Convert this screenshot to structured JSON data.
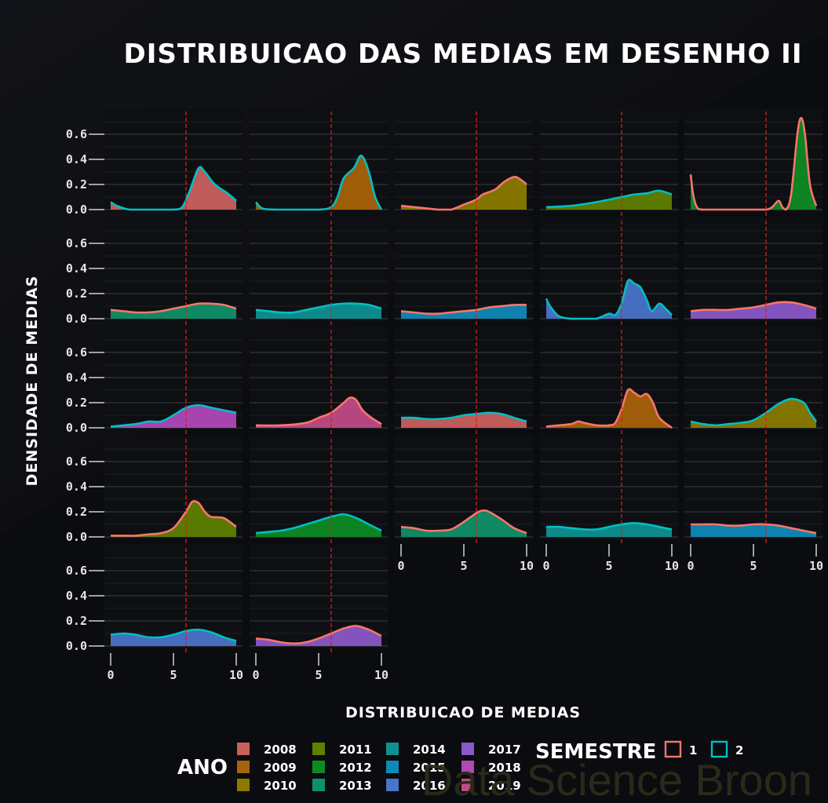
{
  "chart_data": {
    "type": "area",
    "title": "DISTRIBUICAO DAS MEDIAS EM DESENHO II",
    "xlabel": "DISTRIBUICAO DE MEDIAS",
    "ylabel": "DENSIDADE DE MEDIAS",
    "xlim": [
      0,
      10
    ],
    "ylim": [
      0,
      0.75
    ],
    "x_ticks": [
      "0",
      "5",
      "10"
    ],
    "y_ticks": [
      "0.0",
      "0.2",
      "0.4",
      "0.6"
    ],
    "reference_line_x": 6,
    "grid": true,
    "facet_layout": "5 columns, wrapped",
    "legend_ano": {
      "title": "ANO",
      "entries": [
        {
          "label": "2008",
          "color": "#c9605e"
        },
        {
          "label": "2009",
          "color": "#a8620a"
        },
        {
          "label": "2010",
          "color": "#8a7a00"
        },
        {
          "label": "2011",
          "color": "#5e8000"
        },
        {
          "label": "2012",
          "color": "#0e8a24"
        },
        {
          "label": "2013",
          "color": "#0f9068"
        },
        {
          "label": "2014",
          "color": "#0f9090"
        },
        {
          "label": "2015",
          "color": "#0f8ab8"
        },
        {
          "label": "2016",
          "color": "#4a74c8"
        },
        {
          "label": "2017",
          "color": "#8a58c8"
        },
        {
          "label": "2018",
          "color": "#b048b8"
        },
        {
          "label": "2019",
          "color": "#c04a86"
        }
      ]
    },
    "legend_semestre": {
      "title": "SEMESTRE",
      "entries": [
        {
          "label": "1",
          "color": "#f8766d"
        },
        {
          "label": "2",
          "color": "#00bfc4"
        }
      ]
    },
    "panels": [
      {
        "year": "2008",
        "semestre": "2",
        "points": [
          [
            0,
            0.06
          ],
          [
            0.5,
            0.03
          ],
          [
            1.5,
            0.0
          ],
          [
            3,
            0.0
          ],
          [
            5,
            0.0
          ],
          [
            5.7,
            0.02
          ],
          [
            6.3,
            0.15
          ],
          [
            7,
            0.33
          ],
          [
            7.5,
            0.3
          ],
          [
            8.3,
            0.2
          ],
          [
            9.3,
            0.13
          ],
          [
            10,
            0.07
          ]
        ]
      },
      {
        "year": "2009",
        "semestre": "2",
        "points": [
          [
            0,
            0.06
          ],
          [
            0.5,
            0.01
          ],
          [
            1.5,
            0.0
          ],
          [
            3,
            0.0
          ],
          [
            5,
            0.0
          ],
          [
            6,
            0.02
          ],
          [
            6.5,
            0.1
          ],
          [
            7,
            0.25
          ],
          [
            7.8,
            0.33
          ],
          [
            8.4,
            0.43
          ],
          [
            9,
            0.3
          ],
          [
            9.5,
            0.1
          ],
          [
            10,
            0.0
          ]
        ]
      },
      {
        "year": "2010",
        "semestre": "1",
        "points": [
          [
            0,
            0.03
          ],
          [
            1,
            0.02
          ],
          [
            2,
            0.01
          ],
          [
            3,
            0.0
          ],
          [
            4,
            0.0
          ],
          [
            5,
            0.04
          ],
          [
            6,
            0.08
          ],
          [
            6.5,
            0.12
          ],
          [
            7.5,
            0.16
          ],
          [
            8.2,
            0.22
          ],
          [
            9,
            0.26
          ],
          [
            9.5,
            0.24
          ],
          [
            10,
            0.2
          ]
        ]
      },
      {
        "year": "2011",
        "semestre": "2",
        "points": [
          [
            0,
            0.02
          ],
          [
            2,
            0.03
          ],
          [
            4,
            0.06
          ],
          [
            6,
            0.1
          ],
          [
            7,
            0.12
          ],
          [
            8,
            0.13
          ],
          [
            9,
            0.15
          ],
          [
            10,
            0.12
          ]
        ]
      },
      {
        "year": "2012",
        "semestre": "1",
        "points": [
          [
            0,
            0.28
          ],
          [
            0.2,
            0.12
          ],
          [
            0.5,
            0.02
          ],
          [
            1,
            0.0
          ],
          [
            3,
            0.0
          ],
          [
            5,
            0.0
          ],
          [
            6,
            0.0
          ],
          [
            6.5,
            0.02
          ],
          [
            7,
            0.07
          ],
          [
            7.3,
            0.02
          ],
          [
            7.6,
            0.0
          ],
          [
            8,
            0.12
          ],
          [
            8.5,
            0.6
          ],
          [
            8.8,
            0.73
          ],
          [
            9.1,
            0.6
          ],
          [
            9.5,
            0.2
          ],
          [
            10,
            0.03
          ]
        ]
      },
      {
        "year": "2013",
        "semestre": "1",
        "points": [
          [
            0,
            0.07
          ],
          [
            1,
            0.06
          ],
          [
            2,
            0.05
          ],
          [
            3,
            0.05
          ],
          [
            4,
            0.06
          ],
          [
            5,
            0.08
          ],
          [
            6,
            0.1
          ],
          [
            7,
            0.12
          ],
          [
            8,
            0.12
          ],
          [
            9,
            0.11
          ],
          [
            10,
            0.08
          ]
        ]
      },
      {
        "year": "2014",
        "semestre": "2",
        "points": [
          [
            0,
            0.07
          ],
          [
            1,
            0.06
          ],
          [
            2,
            0.05
          ],
          [
            3,
            0.05
          ],
          [
            4,
            0.07
          ],
          [
            5,
            0.09
          ],
          [
            6,
            0.11
          ],
          [
            7,
            0.12
          ],
          [
            8,
            0.12
          ],
          [
            9,
            0.11
          ],
          [
            10,
            0.08
          ]
        ]
      },
      {
        "year": "2015",
        "semestre": "1",
        "points": [
          [
            0,
            0.06
          ],
          [
            1,
            0.05
          ],
          [
            2,
            0.04
          ],
          [
            3,
            0.04
          ],
          [
            4,
            0.05
          ],
          [
            5,
            0.06
          ],
          [
            6,
            0.07
          ],
          [
            7,
            0.09
          ],
          [
            8,
            0.1
          ],
          [
            9,
            0.11
          ],
          [
            10,
            0.11
          ]
        ]
      },
      {
        "year": "2016",
        "semestre": "2",
        "points": [
          [
            0,
            0.16
          ],
          [
            0.3,
            0.1
          ],
          [
            1,
            0.02
          ],
          [
            2,
            0.0
          ],
          [
            3,
            0.0
          ],
          [
            4,
            0.0
          ],
          [
            5,
            0.04
          ],
          [
            5.5,
            0.03
          ],
          [
            6,
            0.12
          ],
          [
            6.5,
            0.3
          ],
          [
            7,
            0.28
          ],
          [
            7.5,
            0.25
          ],
          [
            8,
            0.15
          ],
          [
            8.4,
            0.06
          ],
          [
            9,
            0.12
          ],
          [
            9.5,
            0.08
          ],
          [
            10,
            0.03
          ]
        ]
      },
      {
        "year": "2017",
        "semestre": "1",
        "points": [
          [
            0,
            0.06
          ],
          [
            1,
            0.07
          ],
          [
            2,
            0.07
          ],
          [
            3,
            0.07
          ],
          [
            4,
            0.08
          ],
          [
            5,
            0.09
          ],
          [
            6,
            0.11
          ],
          [
            7,
            0.13
          ],
          [
            8,
            0.13
          ],
          [
            9,
            0.11
          ],
          [
            10,
            0.08
          ]
        ]
      },
      {
        "year": "2018",
        "semestre": "2",
        "points": [
          [
            0,
            0.01
          ],
          [
            2,
            0.03
          ],
          [
            3,
            0.05
          ],
          [
            4,
            0.05
          ],
          [
            5,
            0.1
          ],
          [
            6,
            0.16
          ],
          [
            7,
            0.18
          ],
          [
            8,
            0.16
          ],
          [
            9,
            0.14
          ],
          [
            10,
            0.12
          ]
        ]
      },
      {
        "year": "2019",
        "semestre": "1",
        "points": [
          [
            0,
            0.02
          ],
          [
            2,
            0.02
          ],
          [
            4,
            0.04
          ],
          [
            5,
            0.08
          ],
          [
            6,
            0.12
          ],
          [
            7,
            0.2
          ],
          [
            7.5,
            0.24
          ],
          [
            8,
            0.22
          ],
          [
            8.5,
            0.14
          ],
          [
            9.2,
            0.08
          ],
          [
            10,
            0.03
          ]
        ]
      },
      {
        "year": "2008",
        "semestre": "2",
        "points": [
          [
            0,
            0.08
          ],
          [
            1,
            0.08
          ],
          [
            2,
            0.07
          ],
          [
            3,
            0.07
          ],
          [
            4,
            0.08
          ],
          [
            5,
            0.1
          ],
          [
            6,
            0.11
          ],
          [
            7,
            0.12
          ],
          [
            8,
            0.11
          ],
          [
            9,
            0.08
          ],
          [
            10,
            0.05
          ]
        ]
      },
      {
        "year": "2009",
        "semestre": "1",
        "points": [
          [
            0,
            0.01
          ],
          [
            1,
            0.02
          ],
          [
            2,
            0.03
          ],
          [
            2.5,
            0.05
          ],
          [
            3,
            0.04
          ],
          [
            4,
            0.02
          ],
          [
            5,
            0.02
          ],
          [
            5.5,
            0.04
          ],
          [
            6,
            0.15
          ],
          [
            6.5,
            0.3
          ],
          [
            7,
            0.28
          ],
          [
            7.5,
            0.25
          ],
          [
            8,
            0.27
          ],
          [
            8.5,
            0.2
          ],
          [
            9,
            0.08
          ],
          [
            10,
            0.0
          ]
        ]
      },
      {
        "year": "2010",
        "semestre": "2",
        "points": [
          [
            0,
            0.05
          ],
          [
            1,
            0.03
          ],
          [
            2,
            0.02
          ],
          [
            3,
            0.03
          ],
          [
            4,
            0.04
          ],
          [
            5,
            0.06
          ],
          [
            6,
            0.12
          ],
          [
            7,
            0.19
          ],
          [
            8,
            0.23
          ],
          [
            9,
            0.2
          ],
          [
            9.5,
            0.12
          ],
          [
            10,
            0.05
          ]
        ]
      },
      {
        "year": "2011",
        "semestre": "1",
        "points": [
          [
            0,
            0.01
          ],
          [
            1,
            0.01
          ],
          [
            2,
            0.01
          ],
          [
            3,
            0.02
          ],
          [
            4,
            0.03
          ],
          [
            5,
            0.07
          ],
          [
            6,
            0.2
          ],
          [
            6.5,
            0.28
          ],
          [
            7,
            0.27
          ],
          [
            7.5,
            0.2
          ],
          [
            8,
            0.16
          ],
          [
            9,
            0.15
          ],
          [
            10,
            0.08
          ]
        ]
      },
      {
        "year": "2012",
        "semestre": "2",
        "points": [
          [
            0,
            0.03
          ],
          [
            1,
            0.04
          ],
          [
            2,
            0.05
          ],
          [
            3,
            0.07
          ],
          [
            4,
            0.1
          ],
          [
            5,
            0.13
          ],
          [
            6,
            0.16
          ],
          [
            7,
            0.18
          ],
          [
            8,
            0.15
          ],
          [
            9,
            0.1
          ],
          [
            10,
            0.05
          ]
        ]
      },
      {
        "year": "2013",
        "semestre": "1",
        "points": [
          [
            0,
            0.08
          ],
          [
            1,
            0.07
          ],
          [
            2,
            0.05
          ],
          [
            3,
            0.05
          ],
          [
            4,
            0.06
          ],
          [
            5,
            0.12
          ],
          [
            6,
            0.19
          ],
          [
            6.5,
            0.21
          ],
          [
            7,
            0.2
          ],
          [
            8,
            0.14
          ],
          [
            9,
            0.07
          ],
          [
            10,
            0.03
          ]
        ]
      },
      {
        "year": "2014",
        "semestre": "2",
        "points": [
          [
            0,
            0.08
          ],
          [
            1,
            0.08
          ],
          [
            2,
            0.07
          ],
          [
            3,
            0.06
          ],
          [
            4,
            0.06
          ],
          [
            5,
            0.08
          ],
          [
            6,
            0.1
          ],
          [
            7,
            0.11
          ],
          [
            8,
            0.1
          ],
          [
            9,
            0.08
          ],
          [
            10,
            0.06
          ]
        ]
      },
      {
        "year": "2015",
        "semestre": "1",
        "points": [
          [
            0,
            0.1
          ],
          [
            1,
            0.1
          ],
          [
            2,
            0.1
          ],
          [
            3,
            0.09
          ],
          [
            4,
            0.09
          ],
          [
            5,
            0.1
          ],
          [
            6,
            0.1
          ],
          [
            7,
            0.09
          ],
          [
            8,
            0.07
          ],
          [
            9,
            0.05
          ],
          [
            10,
            0.03
          ]
        ]
      },
      {
        "year": "2016",
        "semestre": "2",
        "points": [
          [
            0,
            0.09
          ],
          [
            1,
            0.1
          ],
          [
            2,
            0.09
          ],
          [
            3,
            0.07
          ],
          [
            4,
            0.07
          ],
          [
            5,
            0.09
          ],
          [
            6,
            0.12
          ],
          [
            7,
            0.13
          ],
          [
            8,
            0.11
          ],
          [
            9,
            0.07
          ],
          [
            10,
            0.04
          ]
        ]
      },
      {
        "year": "2017",
        "semestre": "1",
        "points": [
          [
            0,
            0.06
          ],
          [
            1,
            0.05
          ],
          [
            2,
            0.03
          ],
          [
            3,
            0.02
          ],
          [
            4,
            0.03
          ],
          [
            5,
            0.06
          ],
          [
            6,
            0.1
          ],
          [
            7,
            0.14
          ],
          [
            8,
            0.16
          ],
          [
            9,
            0.13
          ],
          [
            10,
            0.08
          ]
        ]
      }
    ]
  },
  "watermark": "Data Science Broon"
}
